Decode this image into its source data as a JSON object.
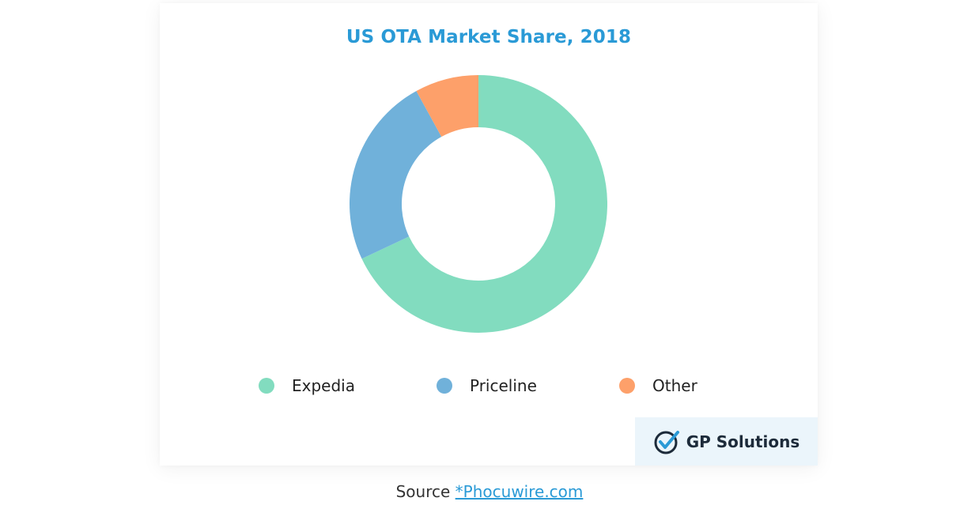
{
  "chart_data": {
    "type": "pie",
    "title": "US OTA Market Share, 2018",
    "categories": [
      "Expedia",
      "Priceline",
      "Other"
    ],
    "values": [
      68,
      24,
      8
    ],
    "colors": [
      "#82dcbf",
      "#70b1da",
      "#fda06a"
    ],
    "donut": true,
    "legend": "bottom"
  },
  "legend": [
    {
      "label": "Expedia",
      "color": "#82dcbf"
    },
    {
      "label": "Priceline",
      "color": "#70b1da"
    },
    {
      "label": "Other",
      "color": "#fda06a"
    }
  ],
  "brand": {
    "name": "GP Solutions"
  },
  "source": {
    "label": "Source",
    "link_text": "*Phocuwire.com"
  }
}
